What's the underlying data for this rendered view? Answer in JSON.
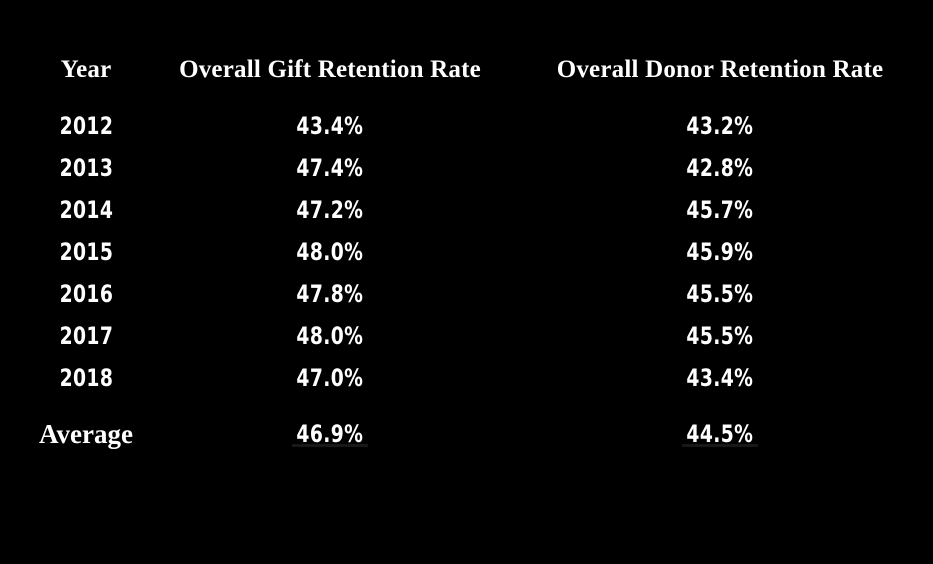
{
  "table": {
    "header": {
      "year": "Year",
      "gift": "Overall Gift Retention Rate",
      "donor": "Overall Donor Retention Rate"
    },
    "average_label": "Average"
  },
  "chart_data": {
    "type": "table",
    "title": "",
    "columns": [
      "Year",
      "Overall Gift Retention Rate",
      "Overall Donor Retention Rate"
    ],
    "categories": [
      "2012",
      "2013",
      "2014",
      "2015",
      "2016",
      "2017",
      "2018"
    ],
    "rows": [
      [
        "2012",
        "43.4%",
        "43.2%"
      ],
      [
        "2013",
        "47.4%",
        "42.8%"
      ],
      [
        "2014",
        "47.2%",
        "45.7%"
      ],
      [
        "2015",
        "48.0%",
        "45.9%"
      ],
      [
        "2016",
        "47.8%",
        "45.5%"
      ],
      [
        "2017",
        "48.0%",
        "45.5%"
      ],
      [
        "2018",
        "47.0%",
        "43.4%"
      ]
    ],
    "summary_row": [
      "Average",
      "46.9%",
      "44.5%"
    ],
    "series": [
      {
        "name": "Overall Gift Retention Rate",
        "values": [
          43.4,
          47.4,
          47.2,
          48.0,
          47.8,
          48.0,
          47.0
        ],
        "average": 46.9
      },
      {
        "name": "Overall Donor Retention Rate",
        "values": [
          43.2,
          42.8,
          45.7,
          45.9,
          45.5,
          45.5,
          43.4
        ],
        "average": 44.5
      }
    ],
    "layout": {
      "legend": false,
      "grid": false
    },
    "colors": {
      "background": "#000000",
      "text": "#ffffff",
      "sum_line": "#181818"
    }
  }
}
